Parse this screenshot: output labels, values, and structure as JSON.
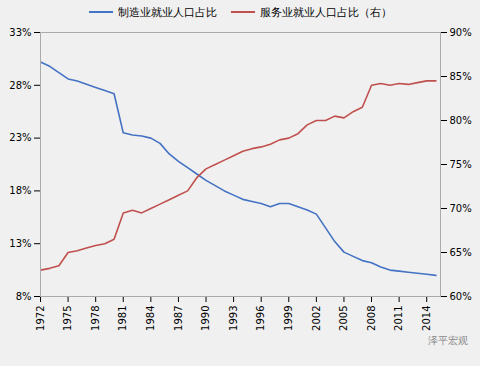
{
  "chart_data": {
    "type": "line",
    "x": [
      1972,
      1973,
      1974,
      1975,
      1976,
      1977,
      1978,
      1979,
      1980,
      1981,
      1982,
      1983,
      1984,
      1985,
      1986,
      1987,
      1988,
      1989,
      1990,
      1991,
      1992,
      1993,
      1994,
      1995,
      1996,
      1997,
      1998,
      1999,
      2000,
      2001,
      2002,
      2003,
      2004,
      2005,
      2006,
      2007,
      2008,
      2009,
      2010,
      2011,
      2012,
      2013,
      2014,
      2015
    ],
    "series": [
      {
        "name": "制造业就业人口占比",
        "color": "#4472C4",
        "values": [
          30.2,
          29.8,
          29.2,
          28.6,
          28.4,
          28.1,
          27.8,
          27.5,
          27.2,
          23.5,
          23.3,
          23.2,
          23.0,
          22.5,
          21.5,
          20.8,
          20.2,
          19.6,
          19.0,
          18.5,
          18.0,
          17.6,
          17.2,
          17.0,
          16.8,
          16.5,
          16.8,
          16.8,
          16.5,
          16.2,
          15.8,
          14.5,
          13.2,
          12.2,
          11.8,
          11.4,
          11.2,
          10.8,
          10.5,
          10.4,
          10.3,
          10.2,
          10.1,
          10.0
        ]
      },
      {
        "name": "服务业就业人口占比（右）",
        "color": "#C0504D",
        "axis": "y2",
        "values": [
          63.0,
          63.2,
          63.5,
          65.0,
          65.2,
          65.5,
          65.8,
          66.0,
          66.5,
          69.5,
          69.8,
          69.5,
          70.0,
          70.5,
          71.0,
          71.5,
          72.0,
          73.5,
          74.5,
          75.0,
          75.5,
          76.0,
          76.5,
          76.8,
          77.0,
          77.3,
          77.8,
          78.0,
          78.5,
          79.5,
          80.0,
          80.0,
          80.5,
          80.3,
          81.0,
          81.5,
          84.0,
          84.2,
          84.0,
          84.2,
          84.1,
          84.3,
          84.5,
          84.5
        ]
      }
    ],
    "xlim": [
      1972,
      2015.5
    ],
    "xticks": [
      1972,
      1975,
      1978,
      1981,
      1984,
      1987,
      1990,
      1993,
      1996,
      1999,
      2002,
      2005,
      2008,
      2011,
      2014
    ],
    "ylim": [
      8,
      33
    ],
    "yticks": [
      {
        "value": 8,
        "label": "8%"
      },
      {
        "value": 13,
        "label": "13%"
      },
      {
        "value": 18,
        "label": "18%"
      },
      {
        "value": 23,
        "label": "23%"
      },
      {
        "value": 28,
        "label": "28%"
      },
      {
        "value": 33,
        "label": "33%"
      }
    ],
    "y2lim": [
      60,
      90
    ],
    "y2ticks": [
      {
        "value": 60,
        "label": "60%"
      },
      {
        "value": 65,
        "label": "65%"
      },
      {
        "value": 70,
        "label": "70%"
      },
      {
        "value": 75,
        "label": "75%"
      },
      {
        "value": 80,
        "label": "80%"
      },
      {
        "value": 85,
        "label": "85%"
      },
      {
        "value": 90,
        "label": "90%"
      }
    ],
    "annotations": [
      "泽平宏观"
    ],
    "legend": "top",
    "grid": false
  }
}
